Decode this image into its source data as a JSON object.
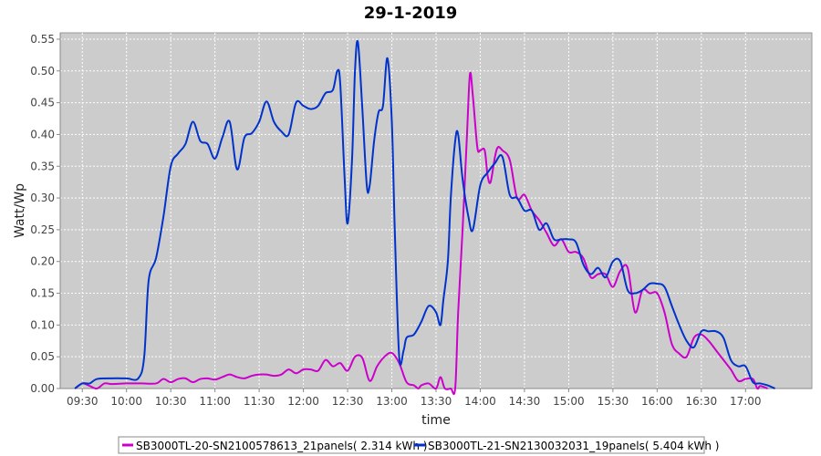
{
  "chart_data": {
    "type": "line",
    "title": "29-1-2019",
    "xlabel": "time",
    "ylabel": "Watt/Wp",
    "x_unit": "time of day",
    "xlim": [
      "09:15",
      "17:45"
    ],
    "ylim": [
      0,
      0.56
    ],
    "x_ticks": [
      "09:30",
      "10:00",
      "10:30",
      "11:00",
      "11:30",
      "12:00",
      "12:30",
      "13:00",
      "13:30",
      "14:00",
      "14:30",
      "15:00",
      "15:30",
      "16:00",
      "16:30",
      "17:00"
    ],
    "y_ticks": [
      "0.00",
      "0.05",
      "0.10",
      "0.15",
      "0.20",
      "0.25",
      "0.30",
      "0.35",
      "0.40",
      "0.45",
      "0.50",
      "0.55"
    ],
    "grid": true,
    "legend_position": "bottom",
    "background_color": "#cccccc",
    "series": [
      {
        "name": "SB3000TL-20-SN2100578613_21panels( 2.314 kWh )",
        "color": "#cc00cc",
        "points": [
          [
            "09:25",
            0.0
          ],
          [
            "09:30",
            0.008
          ],
          [
            "09:35",
            0.004
          ],
          [
            "09:40",
            0.0
          ],
          [
            "09:45",
            0.008
          ],
          [
            "09:50",
            0.007
          ],
          [
            "10:00",
            0.008
          ],
          [
            "10:10",
            0.008
          ],
          [
            "10:20",
            0.008
          ],
          [
            "10:25",
            0.015
          ],
          [
            "10:30",
            0.01
          ],
          [
            "10:35",
            0.015
          ],
          [
            "10:40",
            0.016
          ],
          [
            "10:45",
            0.01
          ],
          [
            "10:50",
            0.015
          ],
          [
            "10:55",
            0.016
          ],
          [
            "11:00",
            0.014
          ],
          [
            "11:05",
            0.018
          ],
          [
            "11:10",
            0.022
          ],
          [
            "11:15",
            0.018
          ],
          [
            "11:20",
            0.016
          ],
          [
            "11:25",
            0.02
          ],
          [
            "11:30",
            0.022
          ],
          [
            "11:35",
            0.022
          ],
          [
            "11:40",
            0.02
          ],
          [
            "11:45",
            0.022
          ],
          [
            "11:50",
            0.03
          ],
          [
            "11:55",
            0.024
          ],
          [
            "12:00",
            0.03
          ],
          [
            "12:05",
            0.03
          ],
          [
            "12:10",
            0.028
          ],
          [
            "12:15",
            0.045
          ],
          [
            "12:20",
            0.035
          ],
          [
            "12:25",
            0.04
          ],
          [
            "12:30",
            0.028
          ],
          [
            "12:35",
            0.05
          ],
          [
            "12:40",
            0.048
          ],
          [
            "12:45",
            0.012
          ],
          [
            "12:50",
            0.035
          ],
          [
            "12:55",
            0.05
          ],
          [
            "13:00",
            0.056
          ],
          [
            "13:05",
            0.04
          ],
          [
            "13:10",
            0.01
          ],
          [
            "13:15",
            0.005
          ],
          [
            "13:18",
            0.0
          ],
          [
            "13:20",
            0.005
          ],
          [
            "13:25",
            0.008
          ],
          [
            "13:30",
            0.0
          ],
          [
            "13:33",
            0.018
          ],
          [
            "13:36",
            0.0
          ],
          [
            "13:40",
            0.0
          ],
          [
            "13:43",
            0.0
          ],
          [
            "13:45",
            0.12
          ],
          [
            "13:48",
            0.25
          ],
          [
            "13:51",
            0.4
          ],
          [
            "13:53",
            0.495
          ],
          [
            "13:55",
            0.46
          ],
          [
            "13:58",
            0.38
          ],
          [
            "14:00",
            0.375
          ],
          [
            "14:03",
            0.375
          ],
          [
            "14:05",
            0.335
          ],
          [
            "14:07",
            0.325
          ],
          [
            "14:10",
            0.365
          ],
          [
            "14:12",
            0.38
          ],
          [
            "14:15",
            0.375
          ],
          [
            "14:20",
            0.36
          ],
          [
            "14:25",
            0.3
          ],
          [
            "14:30",
            0.305
          ],
          [
            "14:35",
            0.28
          ],
          [
            "14:40",
            0.265
          ],
          [
            "14:45",
            0.245
          ],
          [
            "14:50",
            0.225
          ],
          [
            "14:55",
            0.235
          ],
          [
            "15:00",
            0.215
          ],
          [
            "15:05",
            0.215
          ],
          [
            "15:10",
            0.205
          ],
          [
            "15:15",
            0.175
          ],
          [
            "15:20",
            0.18
          ],
          [
            "15:25",
            0.18
          ],
          [
            "15:30",
            0.16
          ],
          [
            "15:35",
            0.185
          ],
          [
            "15:40",
            0.19
          ],
          [
            "15:45",
            0.12
          ],
          [
            "15:50",
            0.155
          ],
          [
            "15:55",
            0.15
          ],
          [
            "16:00",
            0.15
          ],
          [
            "16:05",
            0.12
          ],
          [
            "16:10",
            0.07
          ],
          [
            "16:15",
            0.055
          ],
          [
            "16:20",
            0.05
          ],
          [
            "16:25",
            0.08
          ],
          [
            "16:30",
            0.085
          ],
          [
            "16:35",
            0.075
          ],
          [
            "16:40",
            0.06
          ],
          [
            "16:45",
            0.045
          ],
          [
            "16:50",
            0.03
          ],
          [
            "16:55",
            0.012
          ],
          [
            "17:00",
            0.015
          ],
          [
            "17:05",
            0.015
          ],
          [
            "17:08",
            0.0
          ],
          [
            "17:10",
            0.004
          ],
          [
            "17:15",
            0.0
          ]
        ]
      },
      {
        "name": "SB3000TL-21-SN2130032031_19panels( 5.404 kWh )",
        "color": "#0033cc",
        "points": [
          [
            "09:25",
            0.0
          ],
          [
            "09:30",
            0.008
          ],
          [
            "09:35",
            0.008
          ],
          [
            "09:40",
            0.015
          ],
          [
            "09:50",
            0.016
          ],
          [
            "10:00",
            0.016
          ],
          [
            "10:08",
            0.016
          ],
          [
            "10:12",
            0.05
          ],
          [
            "10:15",
            0.17
          ],
          [
            "10:20",
            0.205
          ],
          [
            "10:25",
            0.27
          ],
          [
            "10:30",
            0.35
          ],
          [
            "10:35",
            0.37
          ],
          [
            "10:40",
            0.385
          ],
          [
            "10:45",
            0.42
          ],
          [
            "10:50",
            0.39
          ],
          [
            "10:55",
            0.385
          ],
          [
            "11:00",
            0.362
          ],
          [
            "11:05",
            0.395
          ],
          [
            "11:10",
            0.42
          ],
          [
            "11:15",
            0.345
          ],
          [
            "11:20",
            0.395
          ],
          [
            "11:25",
            0.402
          ],
          [
            "11:30",
            0.42
          ],
          [
            "11:35",
            0.452
          ],
          [
            "11:40",
            0.42
          ],
          [
            "11:45",
            0.405
          ],
          [
            "11:50",
            0.4
          ],
          [
            "11:55",
            0.45
          ],
          [
            "12:00",
            0.445
          ],
          [
            "12:05",
            0.44
          ],
          [
            "12:10",
            0.445
          ],
          [
            "12:15",
            0.465
          ],
          [
            "12:20",
            0.47
          ],
          [
            "12:23",
            0.5
          ],
          [
            "12:25",
            0.48
          ],
          [
            "12:28",
            0.33
          ],
          [
            "12:30",
            0.26
          ],
          [
            "12:33",
            0.36
          ],
          [
            "12:35",
            0.5
          ],
          [
            "12:37",
            0.545
          ],
          [
            "12:40",
            0.44
          ],
          [
            "12:43",
            0.32
          ],
          [
            "12:45",
            0.32
          ],
          [
            "12:48",
            0.39
          ],
          [
            "12:51",
            0.435
          ],
          [
            "12:54",
            0.445
          ],
          [
            "12:57",
            0.52
          ],
          [
            "13:00",
            0.42
          ],
          [
            "13:02",
            0.25
          ],
          [
            "13:05",
            0.05
          ],
          [
            "13:08",
            0.06
          ],
          [
            "13:10",
            0.08
          ],
          [
            "13:15",
            0.085
          ],
          [
            "13:20",
            0.105
          ],
          [
            "13:25",
            0.13
          ],
          [
            "13:30",
            0.12
          ],
          [
            "13:33",
            0.1
          ],
          [
            "13:35",
            0.14
          ],
          [
            "13:38",
            0.2
          ],
          [
            "13:40",
            0.3
          ],
          [
            "13:43",
            0.39
          ],
          [
            "13:45",
            0.4
          ],
          [
            "13:48",
            0.33
          ],
          [
            "13:52",
            0.27
          ],
          [
            "13:55",
            0.25
          ],
          [
            "14:00",
            0.32
          ],
          [
            "14:05",
            0.34
          ],
          [
            "14:10",
            0.355
          ],
          [
            "14:15",
            0.365
          ],
          [
            "14:20",
            0.305
          ],
          [
            "14:25",
            0.3
          ],
          [
            "14:30",
            0.28
          ],
          [
            "14:35",
            0.28
          ],
          [
            "14:40",
            0.25
          ],
          [
            "14:45",
            0.26
          ],
          [
            "14:50",
            0.235
          ],
          [
            "14:55",
            0.235
          ],
          [
            "15:00",
            0.235
          ],
          [
            "15:05",
            0.23
          ],
          [
            "15:10",
            0.195
          ],
          [
            "15:15",
            0.18
          ],
          [
            "15:20",
            0.19
          ],
          [
            "15:25",
            0.175
          ],
          [
            "15:30",
            0.2
          ],
          [
            "15:35",
            0.2
          ],
          [
            "15:40",
            0.155
          ],
          [
            "15:45",
            0.15
          ],
          [
            "15:50",
            0.155
          ],
          [
            "15:55",
            0.165
          ],
          [
            "16:00",
            0.165
          ],
          [
            "16:05",
            0.16
          ],
          [
            "16:10",
            0.13
          ],
          [
            "16:15",
            0.1
          ],
          [
            "16:20",
            0.075
          ],
          [
            "16:25",
            0.065
          ],
          [
            "16:30",
            0.09
          ],
          [
            "16:35",
            0.09
          ],
          [
            "16:40",
            0.09
          ],
          [
            "16:45",
            0.08
          ],
          [
            "16:50",
            0.045
          ],
          [
            "16:55",
            0.035
          ],
          [
            "17:00",
            0.035
          ],
          [
            "17:05",
            0.01
          ],
          [
            "17:10",
            0.008
          ],
          [
            "17:15",
            0.005
          ],
          [
            "17:20",
            0.0
          ]
        ]
      }
    ]
  }
}
